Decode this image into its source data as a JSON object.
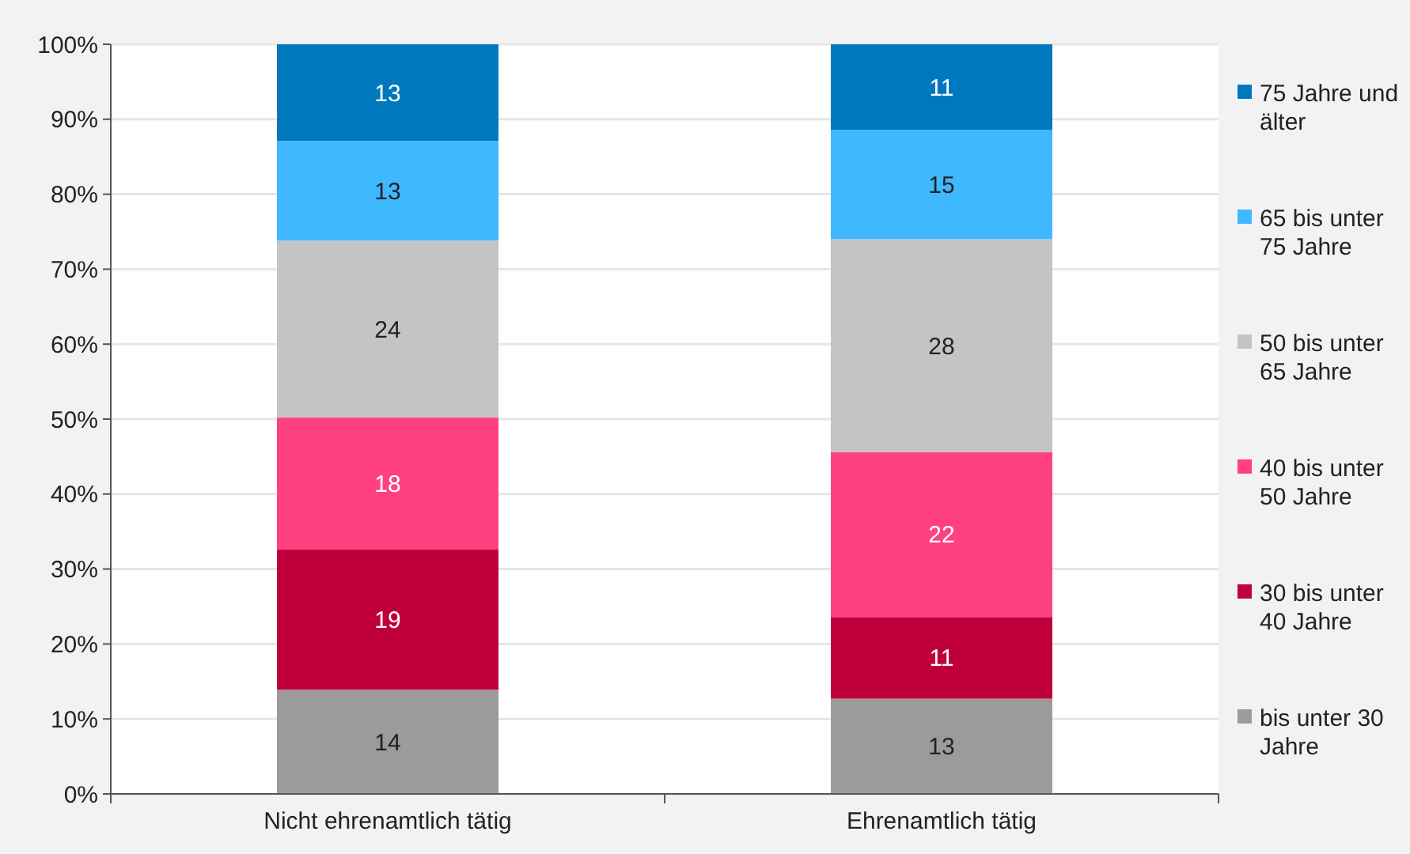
{
  "chart_data": {
    "type": "bar",
    "stacked": true,
    "categories": [
      "Nicht ehrenamtlich tätig",
      "Ehrenamtlich tätig"
    ],
    "series": [
      {
        "name": "bis unter 30 Jahre",
        "color": "#9b9b9b",
        "values": [
          13.9,
          12.7
        ],
        "value_labels": [
          "14",
          "13"
        ]
      },
      {
        "name": "30 bis unter 40 Jahre",
        "color": "#c0003c",
        "values": [
          18.7,
          10.9
        ],
        "value_labels": [
          "19",
          "11"
        ]
      },
      {
        "name": "40 bis unter 50 Jahre",
        "color": "#ff4081",
        "values": [
          17.6,
          22.0
        ],
        "value_labels": [
          "18",
          "22"
        ]
      },
      {
        "name": "50 bis unter 65 Jahre",
        "color": "#c4c4c4",
        "values": [
          23.6,
          28.4
        ],
        "value_labels": [
          "24",
          "28"
        ]
      },
      {
        "name": "65 bis unter 75 Jahre",
        "color": "#40b8ff",
        "values": [
          13.3,
          14.6
        ],
        "value_labels": [
          "13",
          "15"
        ]
      },
      {
        "name": "75 Jahre und älter",
        "color": "#0078be",
        "values": [
          12.9,
          11.4
        ],
        "value_labels": [
          "13",
          "11"
        ]
      }
    ],
    "ylim": [
      0,
      100
    ],
    "yticks": [
      {
        "value": 0,
        "label": "0%"
      },
      {
        "value": 10,
        "label": "10%"
      },
      {
        "value": 20,
        "label": "20%"
      },
      {
        "value": 30,
        "label": "30%"
      },
      {
        "value": 40,
        "label": "40%"
      },
      {
        "value": 50,
        "label": "50%"
      },
      {
        "value": 60,
        "label": "60%"
      },
      {
        "value": 70,
        "label": "70%"
      },
      {
        "value": 80,
        "label": "80%"
      },
      {
        "value": 90,
        "label": "90%"
      },
      {
        "value": 100,
        "label": "100%"
      }
    ],
    "grid": "y",
    "legend": "right"
  }
}
